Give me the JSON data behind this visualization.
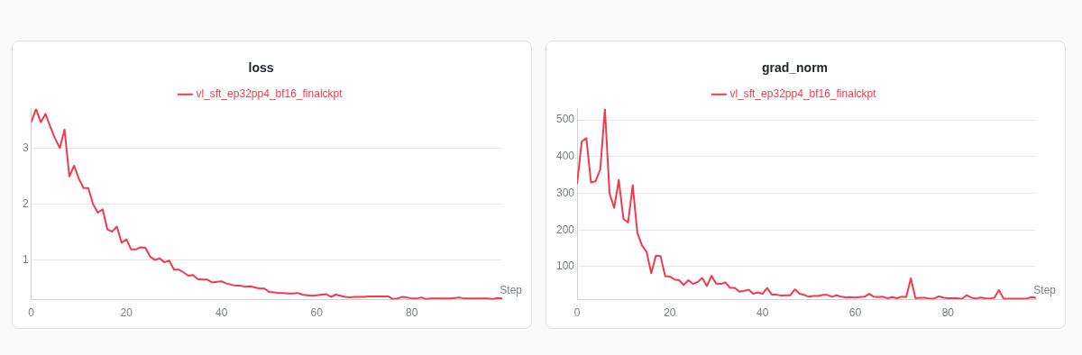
{
  "chart_data": [
    {
      "type": "line",
      "title": "loss",
      "xlabel": "Step",
      "legend": "top",
      "grid": "y",
      "marker": "none",
      "line_style": "solid",
      "x": [
        0,
        1,
        2,
        3,
        4,
        5,
        6,
        7,
        8,
        9,
        10,
        11,
        12,
        13,
        14,
        15,
        16,
        17,
        18,
        19,
        20,
        21,
        22,
        23,
        24,
        25,
        26,
        27,
        28,
        29,
        30,
        31,
        32,
        33,
        34,
        35,
        36,
        37,
        38,
        39,
        40,
        41,
        42,
        43,
        44,
        45,
        46,
        47,
        48,
        49,
        50,
        51,
        52,
        53,
        54,
        55,
        56,
        57,
        58,
        59,
        60,
        61,
        62,
        63,
        64,
        65,
        66,
        67,
        68,
        69,
        70,
        71,
        72,
        73,
        74,
        75,
        76,
        77,
        78,
        79,
        80,
        81,
        82,
        83,
        84,
        85,
        86,
        87,
        88,
        89,
        90,
        91,
        92,
        93,
        94,
        95,
        96,
        97,
        98,
        99
      ],
      "xlim": [
        0,
        99
      ],
      "xticks": [
        0,
        20,
        40,
        60,
        80
      ],
      "ylim": [
        0.29,
        3.71
      ],
      "yticks": [
        1,
        2,
        3
      ],
      "series": [
        {
          "name": "vl_sft_ep32pp4_bf16_finalckpt",
          "color": "#f23a4c",
          "values": [
            3.47,
            3.71,
            3.47,
            3.62,
            3.39,
            3.18,
            3.01,
            3.34,
            2.5,
            2.69,
            2.46,
            2.29,
            2.29,
            2.0,
            1.85,
            1.91,
            1.55,
            1.51,
            1.6,
            1.31,
            1.37,
            1.19,
            1.19,
            1.23,
            1.22,
            1.06,
            1.0,
            1.03,
            0.96,
            0.99,
            0.83,
            0.83,
            0.78,
            0.72,
            0.73,
            0.66,
            0.65,
            0.65,
            0.6,
            0.61,
            0.62,
            0.58,
            0.56,
            0.54,
            0.54,
            0.52,
            0.53,
            0.51,
            0.49,
            0.49,
            0.43,
            0.42,
            0.41,
            0.41,
            0.4,
            0.4,
            0.41,
            0.38,
            0.37,
            0.36,
            0.37,
            0.38,
            0.39,
            0.34,
            0.38,
            0.36,
            0.34,
            0.33,
            0.34,
            0.34,
            0.34,
            0.35,
            0.35,
            0.35,
            0.35,
            0.35,
            0.3,
            0.31,
            0.34,
            0.33,
            0.31,
            0.31,
            0.33,
            0.3,
            0.31,
            0.31,
            0.31,
            0.31,
            0.31,
            0.32,
            0.33,
            0.31,
            0.31,
            0.31,
            0.31,
            0.31,
            0.31,
            0.3,
            0.32,
            0.31
          ]
        }
      ]
    },
    {
      "type": "line",
      "title": "grad_norm",
      "xlabel": "Step",
      "legend": "top",
      "grid": "y",
      "marker": "none",
      "line_style": "solid",
      "x": [
        0,
        1,
        2,
        3,
        4,
        5,
        6,
        7,
        8,
        9,
        10,
        11,
        12,
        13,
        14,
        15,
        16,
        17,
        18,
        19,
        20,
        21,
        22,
        23,
        24,
        25,
        26,
        27,
        28,
        29,
        30,
        31,
        32,
        33,
        34,
        35,
        36,
        37,
        38,
        39,
        40,
        41,
        42,
        43,
        44,
        45,
        46,
        47,
        48,
        49,
        50,
        51,
        52,
        53,
        54,
        55,
        56,
        57,
        58,
        59,
        60,
        61,
        62,
        63,
        64,
        65,
        66,
        67,
        68,
        69,
        70,
        71,
        72,
        73,
        74,
        75,
        76,
        77,
        78,
        79,
        80,
        81,
        82,
        83,
        84,
        85,
        86,
        87,
        88,
        89,
        90,
        91,
        92,
        93,
        94,
        95,
        96,
        97,
        98,
        99
      ],
      "xlim": [
        0,
        99
      ],
      "xticks": [
        0,
        20,
        40,
        60,
        80
      ],
      "ylim": [
        10,
        530
      ],
      "yticks": [
        100,
        200,
        300,
        400,
        500
      ],
      "series": [
        {
          "name": "vl_sft_ep32pp4_bf16_finalckpt",
          "color": "#f23a4c",
          "values": [
            325,
            441,
            450,
            329,
            333,
            365,
            530,
            300,
            260,
            336,
            230,
            220,
            322,
            192,
            158,
            140,
            82,
            130,
            129,
            74,
            73,
            65,
            63,
            50,
            63,
            53,
            58,
            69,
            47,
            75,
            54,
            53,
            57,
            42,
            42,
            32,
            34,
            37,
            26,
            30,
            26,
            42,
            24,
            24,
            21,
            22,
            22,
            38,
            26,
            23,
            18,
            20,
            20,
            23,
            23,
            18,
            22,
            18,
            16,
            17,
            16,
            17,
            18,
            26,
            18,
            17,
            18,
            14,
            17,
            14,
            18,
            17,
            68,
            14,
            15,
            15,
            13,
            13,
            19,
            16,
            14,
            14,
            14,
            12,
            22,
            16,
            13,
            16,
            14,
            13,
            15,
            36,
            13,
            13,
            13,
            13,
            13,
            13,
            17,
            15
          ]
        }
      ]
    }
  ]
}
